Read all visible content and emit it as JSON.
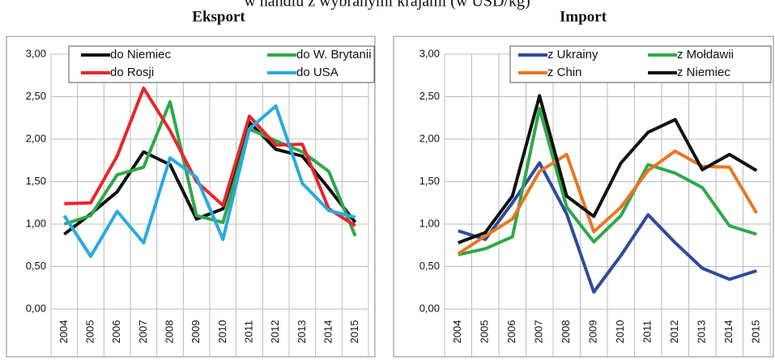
{
  "title": "w handlu z wybranymi krajami (w USD/kg)",
  "chart_data": [
    {
      "type": "line",
      "title": "Eksport",
      "categories": [
        "2004",
        "2005",
        "2006",
        "2007",
        "2008",
        "2009",
        "2010",
        "2011",
        "2012",
        "2013",
        "2014",
        "2015"
      ],
      "ylim": [
        0,
        3
      ],
      "yticks": [
        {
          "value": 0,
          "label": "0,00"
        },
        {
          "value": 0.5,
          "label": "0,50"
        },
        {
          "value": 1,
          "label": "1,00"
        },
        {
          "value": 1.5,
          "label": "1,50"
        },
        {
          "value": 2,
          "label": "2,00"
        },
        {
          "value": 2.5,
          "label": "2,50"
        },
        {
          "value": 3,
          "label": "3,00"
        }
      ],
      "grid": true,
      "series": [
        {
          "name": "do Niemiec",
          "color": "#111111",
          "values": [
            0.88,
            1.12,
            1.38,
            1.85,
            1.7,
            1.06,
            1.18,
            2.2,
            1.88,
            1.8,
            1.42,
            1.02
          ]
        },
        {
          "name": "do W. Brytanii",
          "color": "#2ea84a",
          "values": [
            1.0,
            1.1,
            1.58,
            1.67,
            2.44,
            1.1,
            1.02,
            2.12,
            1.98,
            1.85,
            1.62,
            0.86
          ]
        },
        {
          "name": "do Rosji",
          "color": "#e8262a",
          "values": [
            1.24,
            1.25,
            1.8,
            2.6,
            2.1,
            1.5,
            1.22,
            2.27,
            1.93,
            1.94,
            1.18,
            0.98
          ]
        },
        {
          "name": "do USA",
          "color": "#2aa9e0",
          "values": [
            1.1,
            0.62,
            1.15,
            0.78,
            1.78,
            1.55,
            0.82,
            2.12,
            2.39,
            1.48,
            1.16,
            1.08
          ]
        }
      ]
    },
    {
      "type": "line",
      "title": "Import",
      "categories": [
        "2004",
        "2005",
        "2006",
        "2007",
        "2008",
        "2009",
        "2010",
        "2011",
        "2012",
        "2013",
        "2014",
        "2015"
      ],
      "ylim": [
        0,
        3
      ],
      "yticks": [
        {
          "value": 0,
          "label": "0,00"
        },
        {
          "value": 0.5,
          "label": "0,50"
        },
        {
          "value": 1,
          "label": "1,00"
        },
        {
          "value": 1.5,
          "label": "1,50"
        },
        {
          "value": 2,
          "label": "2,00"
        },
        {
          "value": 2.5,
          "label": "2,50"
        },
        {
          "value": 3,
          "label": "3,00"
        }
      ],
      "grid": true,
      "series": [
        {
          "name": "z Ukrainy",
          "color": "#2e4a9e",
          "values": [
            0.92,
            0.82,
            1.25,
            1.72,
            1.12,
            0.2,
            0.63,
            1.11,
            0.78,
            0.48,
            0.35,
            0.45
          ]
        },
        {
          "name": "z Mołdawii",
          "color": "#2ea84a",
          "values": [
            0.64,
            0.71,
            0.85,
            2.36,
            1.2,
            0.79,
            1.1,
            1.7,
            1.6,
            1.43,
            0.98,
            0.88
          ]
        },
        {
          "name": "z Chin",
          "color": "#e87722",
          "values": [
            0.65,
            0.86,
            1.06,
            1.62,
            1.82,
            0.91,
            1.2,
            1.63,
            1.86,
            1.68,
            1.67,
            1.13
          ]
        },
        {
          "name": "z Niemiec",
          "color": "#111111",
          "values": [
            0.78,
            0.9,
            1.33,
            2.51,
            1.33,
            1.09,
            1.72,
            2.08,
            2.23,
            1.64,
            1.82,
            1.63
          ]
        }
      ]
    }
  ]
}
